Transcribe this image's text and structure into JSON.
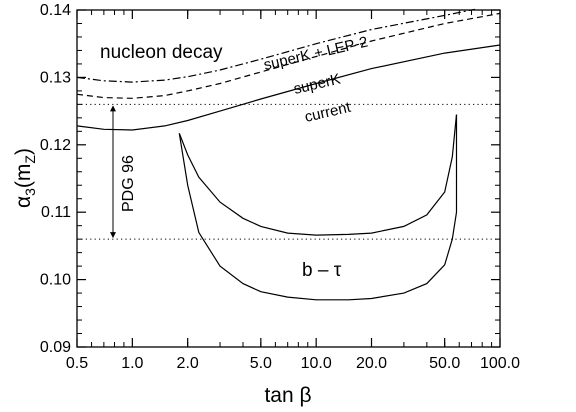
{
  "chart_data": {
    "type": "line",
    "xscale": "log",
    "xlim": [
      0.5,
      100.0
    ],
    "ylim": [
      0.09,
      0.14
    ],
    "xticks": [
      "0.5",
      "1.0",
      "2.0",
      "5.0",
      "10.0",
      "20.0",
      "50.0",
      "100.0"
    ],
    "yticks": [
      "0.09",
      "0.10",
      "0.11",
      "0.12",
      "0.13",
      "0.14"
    ],
    "xlabel": "tan β",
    "ylabel": {
      "main": "α",
      "sub1": "3",
      "paren_open": "(m",
      "sub2": "Z",
      "paren_close": ")"
    },
    "hlines": [
      0.126,
      0.106
    ],
    "series": [
      {
        "name": "current",
        "style": "solid",
        "x": [
          0.5,
          0.7,
          1.0,
          1.5,
          2.0,
          3.0,
          5.0,
          10.0,
          20.0,
          50.0,
          100.0
        ],
        "y": [
          0.1228,
          0.1223,
          0.1222,
          0.1228,
          0.1236,
          0.125,
          0.1268,
          0.1291,
          0.1313,
          0.1336,
          0.1348
        ]
      },
      {
        "name": "superK",
        "style": "dashed",
        "x": [
          0.5,
          0.7,
          1.0,
          1.5,
          2.0,
          3.0,
          5.0,
          10.0,
          20.0,
          50.0,
          100.0
        ],
        "y": [
          0.1275,
          0.127,
          0.1269,
          0.1273,
          0.128,
          0.1291,
          0.1308,
          0.1331,
          0.1354,
          0.138,
          0.1395
        ]
      },
      {
        "name": "superK + LEP-2",
        "style": "dashdot",
        "x": [
          0.5,
          0.7,
          1.0,
          1.5,
          2.0,
          3.0,
          5.0,
          10.0,
          20.0,
          50.0,
          73.0
        ],
        "y": [
          0.13,
          0.1295,
          0.1293,
          0.1296,
          0.1301,
          0.1311,
          0.1327,
          0.135,
          0.1371,
          0.1392,
          0.1401
        ]
      },
      {
        "name": "b - τ upper",
        "style": "solid",
        "x": [
          1.8,
          2.0,
          2.3,
          3.0,
          4.0,
          5.0,
          7.0,
          10.0,
          15.0,
          20.0,
          30.0,
          40.0,
          50.0,
          55.0,
          58.0
        ],
        "y": [
          0.1217,
          0.1185,
          0.1152,
          0.1115,
          0.1091,
          0.1079,
          0.1069,
          0.1066,
          0.1067,
          0.1069,
          0.1079,
          0.1096,
          0.113,
          0.1182,
          0.1245
        ]
      },
      {
        "name": "b - τ lower",
        "style": "solid",
        "x": [
          1.8,
          2.0,
          2.3,
          3.0,
          4.0,
          5.0,
          7.0,
          10.0,
          15.0,
          20.0,
          30.0,
          40.0,
          50.0,
          55.0,
          58.0,
          58.0
        ],
        "y": [
          0.1217,
          0.114,
          0.107,
          0.102,
          0.0994,
          0.0982,
          0.0974,
          0.097,
          0.097,
          0.0972,
          0.098,
          0.0994,
          0.1022,
          0.106,
          0.11,
          0.1245
        ]
      }
    ],
    "annotations": {
      "nucleon": "nucleon decay",
      "superk_lep": "superK + LEP-2",
      "superk": "superK",
      "current": "current",
      "pdg": "PDG 96",
      "btau": "b – τ"
    },
    "pdg_range": [
      0.106,
      0.126
    ]
  }
}
